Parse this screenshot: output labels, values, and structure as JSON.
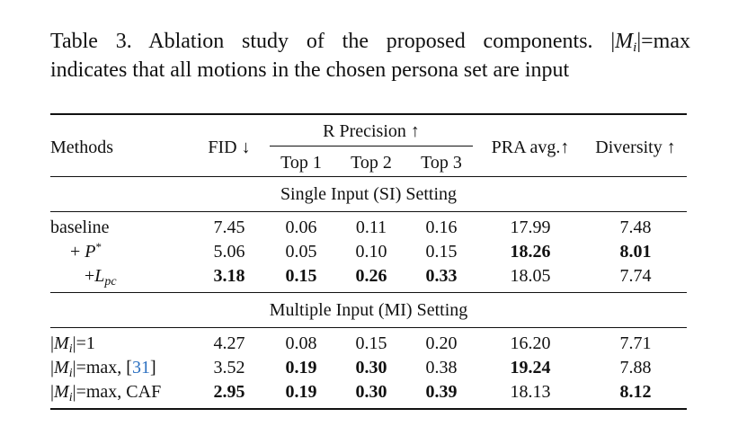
{
  "caption": {
    "line1_prefix": "Table 3. Ablation study of the proposed components.",
    "mi_symbol": "M",
    "mi_sub": "i",
    "line1_suffix": "=max",
    "line2": "indicates that all motions in the chosen persona set are input"
  },
  "header": {
    "methods": "Methods",
    "fid": "FID ↓",
    "r_precision": "R Precision ↑",
    "top1": "Top 1",
    "top2": "Top 2",
    "top3": "Top 3",
    "pra": "PRA avg.↑",
    "diversity": "Diversity ↑"
  },
  "sections": {
    "single": "Single Input (SI) Setting",
    "multiple": "Multiple Input (MI) Setting"
  },
  "rows": {
    "si0": {
      "method": "baseline",
      "fid": "7.45",
      "top1": "0.06",
      "top2": "0.11",
      "top3": "0.16",
      "pra": "17.99",
      "diversity": "7.48"
    },
    "si1": {
      "method_prefix": "+ ",
      "method_symbol": "P",
      "method_sup": "*",
      "fid": "5.06",
      "top1": "0.05",
      "top2": "0.10",
      "top3": "0.15",
      "pra": "18.26",
      "diversity": "8.01"
    },
    "si2": {
      "method_prefix": "+",
      "method_symbol": "L",
      "method_sub": "pc",
      "fid": "3.18",
      "top1": "0.15",
      "top2": "0.26",
      "top3": "0.33",
      "pra": "18.05",
      "diversity": "7.74"
    },
    "mi0": {
      "method_symbol": "M",
      "method_sub": "i",
      "method_suffix": "=1",
      "fid": "4.27",
      "top1": "0.08",
      "top2": "0.15",
      "top3": "0.20",
      "pra": "16.20",
      "diversity": "7.71"
    },
    "mi1": {
      "method_symbol": "M",
      "method_sub": "i",
      "method_suffix": "=max, [",
      "method_cite": "31",
      "method_end": "]",
      "fid": "3.52",
      "top1": "0.19",
      "top2": "0.30",
      "top3": "0.38",
      "pra": "19.24",
      "diversity": "7.88"
    },
    "mi2": {
      "method_symbol": "M",
      "method_sub": "i",
      "method_suffix": "=max, CAF",
      "fid": "2.95",
      "top1": "0.19",
      "top2": "0.30",
      "top3": "0.39",
      "pra": "18.13",
      "diversity": "8.12"
    }
  },
  "bold_cells": [
    "si1.pra",
    "si1.diversity",
    "si2.fid",
    "si2.top1",
    "si2.top2",
    "si2.top3",
    "mi1.top1",
    "mi1.top2",
    "mi1.pra",
    "mi2.fid",
    "mi2.top1",
    "mi2.top2",
    "mi2.top3",
    "mi2.diversity"
  ]
}
